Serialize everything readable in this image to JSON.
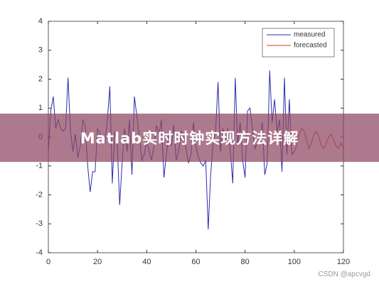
{
  "chart_data": {
    "type": "line",
    "series": [
      {
        "name": "measured",
        "color": "#2b2bb0",
        "x": [
          0,
          1,
          2,
          3,
          4,
          5,
          6,
          7,
          8,
          9,
          10,
          11,
          12,
          13,
          14,
          15,
          16,
          17,
          18,
          19,
          20,
          21,
          22,
          23,
          24,
          25,
          26,
          27,
          28,
          29,
          30,
          31,
          32,
          33,
          34,
          35,
          36,
          37,
          38,
          39,
          40,
          41,
          42,
          43,
          44,
          45,
          46,
          47,
          48,
          49,
          50,
          51,
          52,
          53,
          54,
          55,
          56,
          57,
          58,
          59,
          60,
          61,
          62,
          63,
          64,
          65,
          66,
          67,
          68,
          69,
          70,
          71,
          72,
          73,
          74,
          75,
          76,
          77,
          78,
          79,
          80,
          81,
          82,
          83,
          84,
          85,
          86,
          87,
          88,
          89,
          90,
          91,
          92,
          93,
          94,
          95,
          96,
          97,
          98,
          99,
          100
        ],
        "values": [
          -0.5,
          0.9,
          1.4,
          0.3,
          0.6,
          0.3,
          0.2,
          0.3,
          2.05,
          0.2,
          -0.5,
          0.1,
          -0.7,
          -0.3,
          0.6,
          0.4,
          -1.0,
          -1.9,
          -1.2,
          -1.2,
          0.3,
          0.1,
          0.0,
          -0.2,
          0.6,
          1.75,
          -1.6,
          0.2,
          -0.2,
          -2.35,
          -0.9,
          0.3,
          -0.5,
          0.6,
          -1.3,
          1.4,
          0.7,
          0.0,
          -0.8,
          -0.6,
          -0.1,
          -0.5,
          -0.8,
          -0.3,
          0.4,
          0.1,
          0.6,
          -1.4,
          -0.6,
          0.1,
          -0.3,
          0.4,
          -0.8,
          -0.5,
          0.2,
          0.1,
          -0.4,
          -0.9,
          -0.6,
          0.5,
          -0.3,
          -0.7,
          -0.9,
          -1.0,
          -0.8,
          -3.2,
          -1.3,
          -0.2,
          0.2,
          1.9,
          -0.5,
          0.3,
          -0.2,
          0.3,
          -0.5,
          -1.6,
          2.05,
          -0.3,
          0.5,
          -0.8,
          -1.4,
          0.9,
          1.0,
          0.3,
          -0.4,
          -0.2,
          -0.1,
          0.5,
          -1.3,
          -0.9,
          2.3,
          0.5,
          1.3,
          0.2,
          0.6,
          -1.2,
          2.05,
          -0.6,
          1.3,
          -0.6,
          -0.5
        ]
      },
      {
        "name": "forecasted",
        "color": "#d23a3a",
        "x": [
          100,
          101,
          102,
          103,
          104,
          105,
          106,
          107,
          108,
          109,
          110,
          111,
          112,
          113,
          114,
          115,
          116,
          117,
          118,
          119,
          120
        ],
        "values": [
          -0.5,
          -0.3,
          0.1,
          0.3,
          0.2,
          -0.1,
          -0.4,
          -0.2,
          0.1,
          0.2,
          0.0,
          -0.3,
          -0.4,
          -0.2,
          0.0,
          0.1,
          -0.1,
          -0.3,
          -0.4,
          -0.2,
          -0.4
        ]
      }
    ],
    "xlim": [
      0,
      120
    ],
    "xticks": [
      0,
      20,
      40,
      60,
      80,
      100,
      120
    ],
    "ylim": [
      -4,
      4
    ],
    "yticks": [
      -4,
      -3,
      -2,
      -1,
      0,
      1,
      2,
      3,
      4
    ],
    "legend": "upper right"
  },
  "banner": {
    "title": "Matlab实时时钟实现方法详解"
  },
  "watermark": "CSDN @apcvgd"
}
